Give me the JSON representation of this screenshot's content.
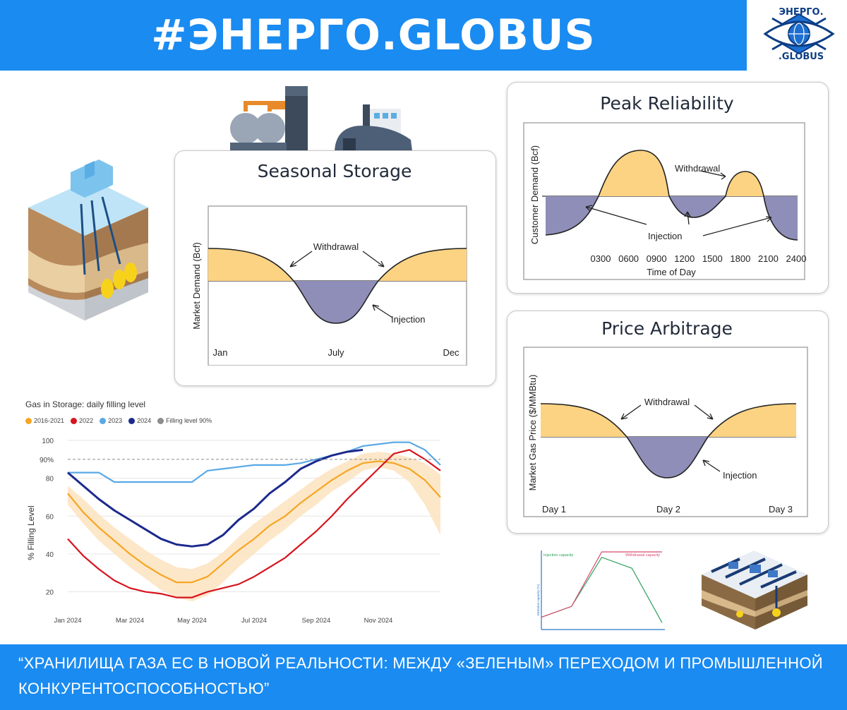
{
  "header": {
    "title": "#ЭНЕРГО.GLOBUS",
    "logo_top": "ЭНЕРГО.",
    "logo_bottom": ".GLOBUS"
  },
  "footer": {
    "text": "“ХРАНИЛИЩА ГАЗА ЕС В НОВОЙ РЕАЛЬНОСТИ: МЕЖДУ «ЗЕЛЕНЫМ» ПЕРЕХОДОМ И ПРОМЫШЛЕННОЙ КОНКУРЕНТОСПОСОБНОСТЬЮ”"
  },
  "colors": {
    "brand_blue": "#1a8bf1",
    "withdrawal_fill": "#fcd383",
    "injection_fill": "#8f8eb9",
    "series_2016_2021": "#f5a623",
    "series_2022": "#d7141e",
    "series_2023": "#5aa9e6",
    "series_2024": "#1b2a8c",
    "series_90": "#8c8c8c"
  },
  "chart_data": [
    {
      "type": "area",
      "title": "Seasonal Storage",
      "ylabel": "Market Demand (Bcf)",
      "x_ticks": [
        "Jan",
        "July",
        "Dec"
      ],
      "annotations": [
        "Withdrawal",
        "Injection"
      ]
    },
    {
      "type": "area",
      "title": "Peak Reliability",
      "ylabel": "Customer Demand (Bcf)",
      "xlabel": "Time of Day",
      "x_ticks": [
        "0300",
        "0600",
        "0900",
        "1200",
        "1500",
        "1800",
        "2100",
        "2400"
      ],
      "annotations": [
        "Withdrawal",
        "Injection"
      ]
    },
    {
      "type": "area",
      "title": "Price Arbitrage",
      "ylabel": "Market Gas Price ($/MMBtu)",
      "x_ticks": [
        "Day 1",
        "Day 2",
        "Day 3"
      ],
      "annotations": [
        "Withdrawal",
        "Injection"
      ]
    },
    {
      "type": "line",
      "title": "Gas in Storage: daily filling level",
      "ylabel": "% Filling Level",
      "x_ticks": [
        "Jan 2024",
        "Mar 2024",
        "May 2024",
        "Jul 2024",
        "Sep 2024",
        "Nov 2024"
      ],
      "y_ticks": [
        "20",
        "40",
        "60",
        "80",
        "90%",
        "100"
      ],
      "ylim": [
        12,
        100
      ],
      "legend_position": "top-left",
      "series": [
        {
          "name": "2016-2021",
          "x": [
            0,
            0.5,
            1,
            1.5,
            2,
            2.5,
            3,
            3.5,
            4,
            4.5,
            5,
            5.5,
            6,
            6.5,
            7,
            7.5,
            8,
            8.5,
            9,
            9.5,
            10,
            10.5,
            11,
            11.5,
            12
          ],
          "y": [
            72,
            62,
            54,
            47,
            40,
            34,
            29,
            25,
            25,
            28,
            35,
            42,
            48,
            55,
            60,
            67,
            73,
            79,
            84,
            88,
            89,
            88,
            85,
            79,
            70
          ],
          "low": [
            66,
            56,
            47,
            40,
            33,
            27,
            21,
            17,
            15,
            18,
            25,
            33,
            40,
            47,
            53,
            60,
            66,
            73,
            78,
            84,
            86,
            84,
            78,
            66,
            50
          ],
          "high": [
            76,
            69,
            61,
            54,
            48,
            42,
            37,
            33,
            32,
            35,
            41,
            49,
            56,
            62,
            68,
            74,
            80,
            85,
            89,
            93,
            94,
            93,
            91,
            88,
            82
          ]
        },
        {
          "name": "2022",
          "x": [
            0,
            0.5,
            1,
            1.5,
            2,
            2.5,
            3,
            3.5,
            4,
            4.5,
            5,
            5.5,
            6,
            6.5,
            7,
            7.5,
            8,
            8.5,
            9,
            9.5,
            10,
            10.5,
            11,
            11.5,
            12
          ],
          "y": [
            48,
            39,
            32,
            26,
            22,
            20,
            19,
            17,
            17,
            20,
            22,
            24,
            28,
            33,
            38,
            45,
            52,
            60,
            69,
            77,
            85,
            93,
            95,
            90,
            84
          ]
        },
        {
          "name": "2023",
          "x": [
            0,
            0.5,
            1,
            1.5,
            2,
            2.5,
            3,
            3.5,
            4,
            4.5,
            5,
            5.5,
            6,
            6.5,
            7,
            7.5,
            8,
            8.5,
            9,
            9.5,
            10,
            10.5,
            11,
            11.5,
            12
          ],
          "y": [
            83,
            83,
            83,
            78,
            78,
            78,
            78,
            78,
            78,
            84,
            85,
            86,
            87,
            87,
            87,
            88,
            90,
            92,
            94,
            97,
            98,
            99,
            99,
            95,
            87
          ]
        },
        {
          "name": "2024",
          "x": [
            0,
            0.5,
            1,
            1.5,
            2,
            2.5,
            3,
            3.5,
            4,
            4.5,
            5,
            5.5,
            6,
            6.5,
            7,
            7.5,
            8,
            8.5,
            9,
            9.5
          ],
          "y": [
            83,
            76,
            69,
            63,
            58,
            53,
            48,
            45,
            44,
            45,
            50,
            58,
            64,
            72,
            78,
            85,
            89,
            92,
            94,
            95
          ]
        },
        {
          "name": "Filling level 90%",
          "x": [
            0,
            12
          ],
          "y": [
            90,
            90
          ]
        }
      ]
    },
    {
      "type": "line",
      "series": [
        {
          "name": "Injection capacity",
          "x": [
            0,
            1,
            2,
            3,
            4
          ],
          "y": [
            10,
            20,
            65,
            55,
            5
          ]
        },
        {
          "name": "Withdrawal capacity",
          "x": [
            0,
            1,
            2,
            3,
            4
          ],
          "y": [
            10,
            20,
            70,
            70,
            70
          ]
        }
      ],
      "ylabel": "Emission capacity (%)"
    }
  ]
}
